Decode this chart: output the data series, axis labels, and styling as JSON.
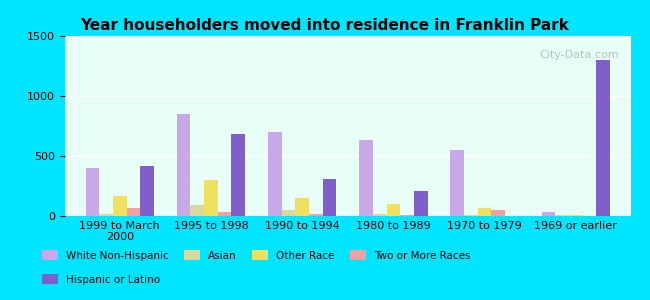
{
  "title": "Year householders moved into residence in Franklin Park",
  "categories": [
    "1999 to March\n2000",
    "1995 to 1998",
    "1990 to 1994",
    "1980 to 1989",
    "1970 to 1979",
    "1969 or earlier"
  ],
  "series": {
    "White Non-Hispanic": [
      400,
      850,
      700,
      630,
      550,
      30
    ],
    "Asian": [
      20,
      90,
      50,
      20,
      10,
      10
    ],
    "Other Race": [
      170,
      300,
      150,
      100,
      70,
      10
    ],
    "Two or More Races": [
      70,
      30,
      20,
      10,
      50,
      0
    ],
    "Hispanic or Latino": [
      420,
      680,
      310,
      210,
      0,
      1300
    ]
  },
  "colors": {
    "White Non-Hispanic": "#c8a8e8",
    "Asian": "#d8d8a0",
    "Other Race": "#f0e060",
    "Two or More Races": "#f0a0a0",
    "Hispanic or Latino": "#8060c8"
  },
  "ylim": [
    0,
    1500
  ],
  "yticks": [
    0,
    500,
    1000,
    1500
  ],
  "background_color": "#e8fff8",
  "outer_background": "#00e5ff",
  "watermark": "City-Data.com"
}
